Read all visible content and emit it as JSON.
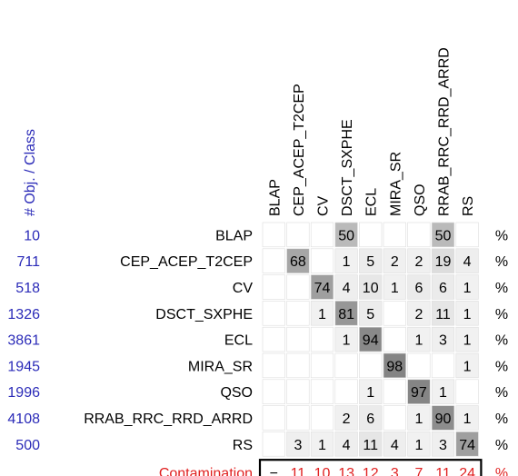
{
  "chart_data": {
    "type": "heatmap",
    "header_label": "# Obj. / Class",
    "columns": [
      "BLAP",
      "CEP_ACEP_T2CEP",
      "CV",
      "DSCT_SXPHE",
      "ECL",
      "MIRA_SR",
      "QSO",
      "RRAB_RRC_RRD_ARRD",
      "RS"
    ],
    "rows": [
      {
        "count": "10",
        "label": "BLAP",
        "values": [
          null,
          null,
          null,
          50,
          null,
          null,
          null,
          50,
          null
        ]
      },
      {
        "count": "711",
        "label": "CEP_ACEP_T2CEP",
        "values": [
          null,
          68,
          null,
          1,
          5,
          2,
          2,
          19,
          4
        ]
      },
      {
        "count": "518",
        "label": "CV",
        "values": [
          null,
          null,
          74,
          4,
          10,
          1,
          6,
          6,
          1
        ]
      },
      {
        "count": "1326",
        "label": "DSCT_SXPHE",
        "values": [
          null,
          null,
          1,
          81,
          5,
          null,
          2,
          11,
          1
        ]
      },
      {
        "count": "3861",
        "label": "ECL",
        "values": [
          null,
          null,
          null,
          1,
          94,
          null,
          1,
          3,
          1
        ]
      },
      {
        "count": "1945",
        "label": "MIRA_SR",
        "values": [
          null,
          null,
          null,
          null,
          null,
          98,
          null,
          null,
          1
        ]
      },
      {
        "count": "1996",
        "label": "QSO",
        "values": [
          null,
          null,
          null,
          null,
          1,
          null,
          97,
          1,
          null
        ]
      },
      {
        "count": "4108",
        "label": "RRAB_RRC_RRD_ARRD",
        "values": [
          null,
          null,
          null,
          2,
          6,
          null,
          1,
          90,
          1
        ]
      },
      {
        "count": "500",
        "label": "RS",
        "values": [
          null,
          3,
          1,
          4,
          11,
          4,
          1,
          3,
          74
        ]
      }
    ],
    "row_unit": "%",
    "contamination": {
      "label": "Contamination",
      "values": [
        "−",
        "11",
        "10",
        "13",
        "12",
        "3",
        "7",
        "11",
        "24"
      ],
      "unit": "%"
    },
    "colors": {
      "count_text": "#2b2bb8",
      "contamination_text": "#e02020",
      "grid": "#dddddd",
      "text": "#000000"
    }
  }
}
